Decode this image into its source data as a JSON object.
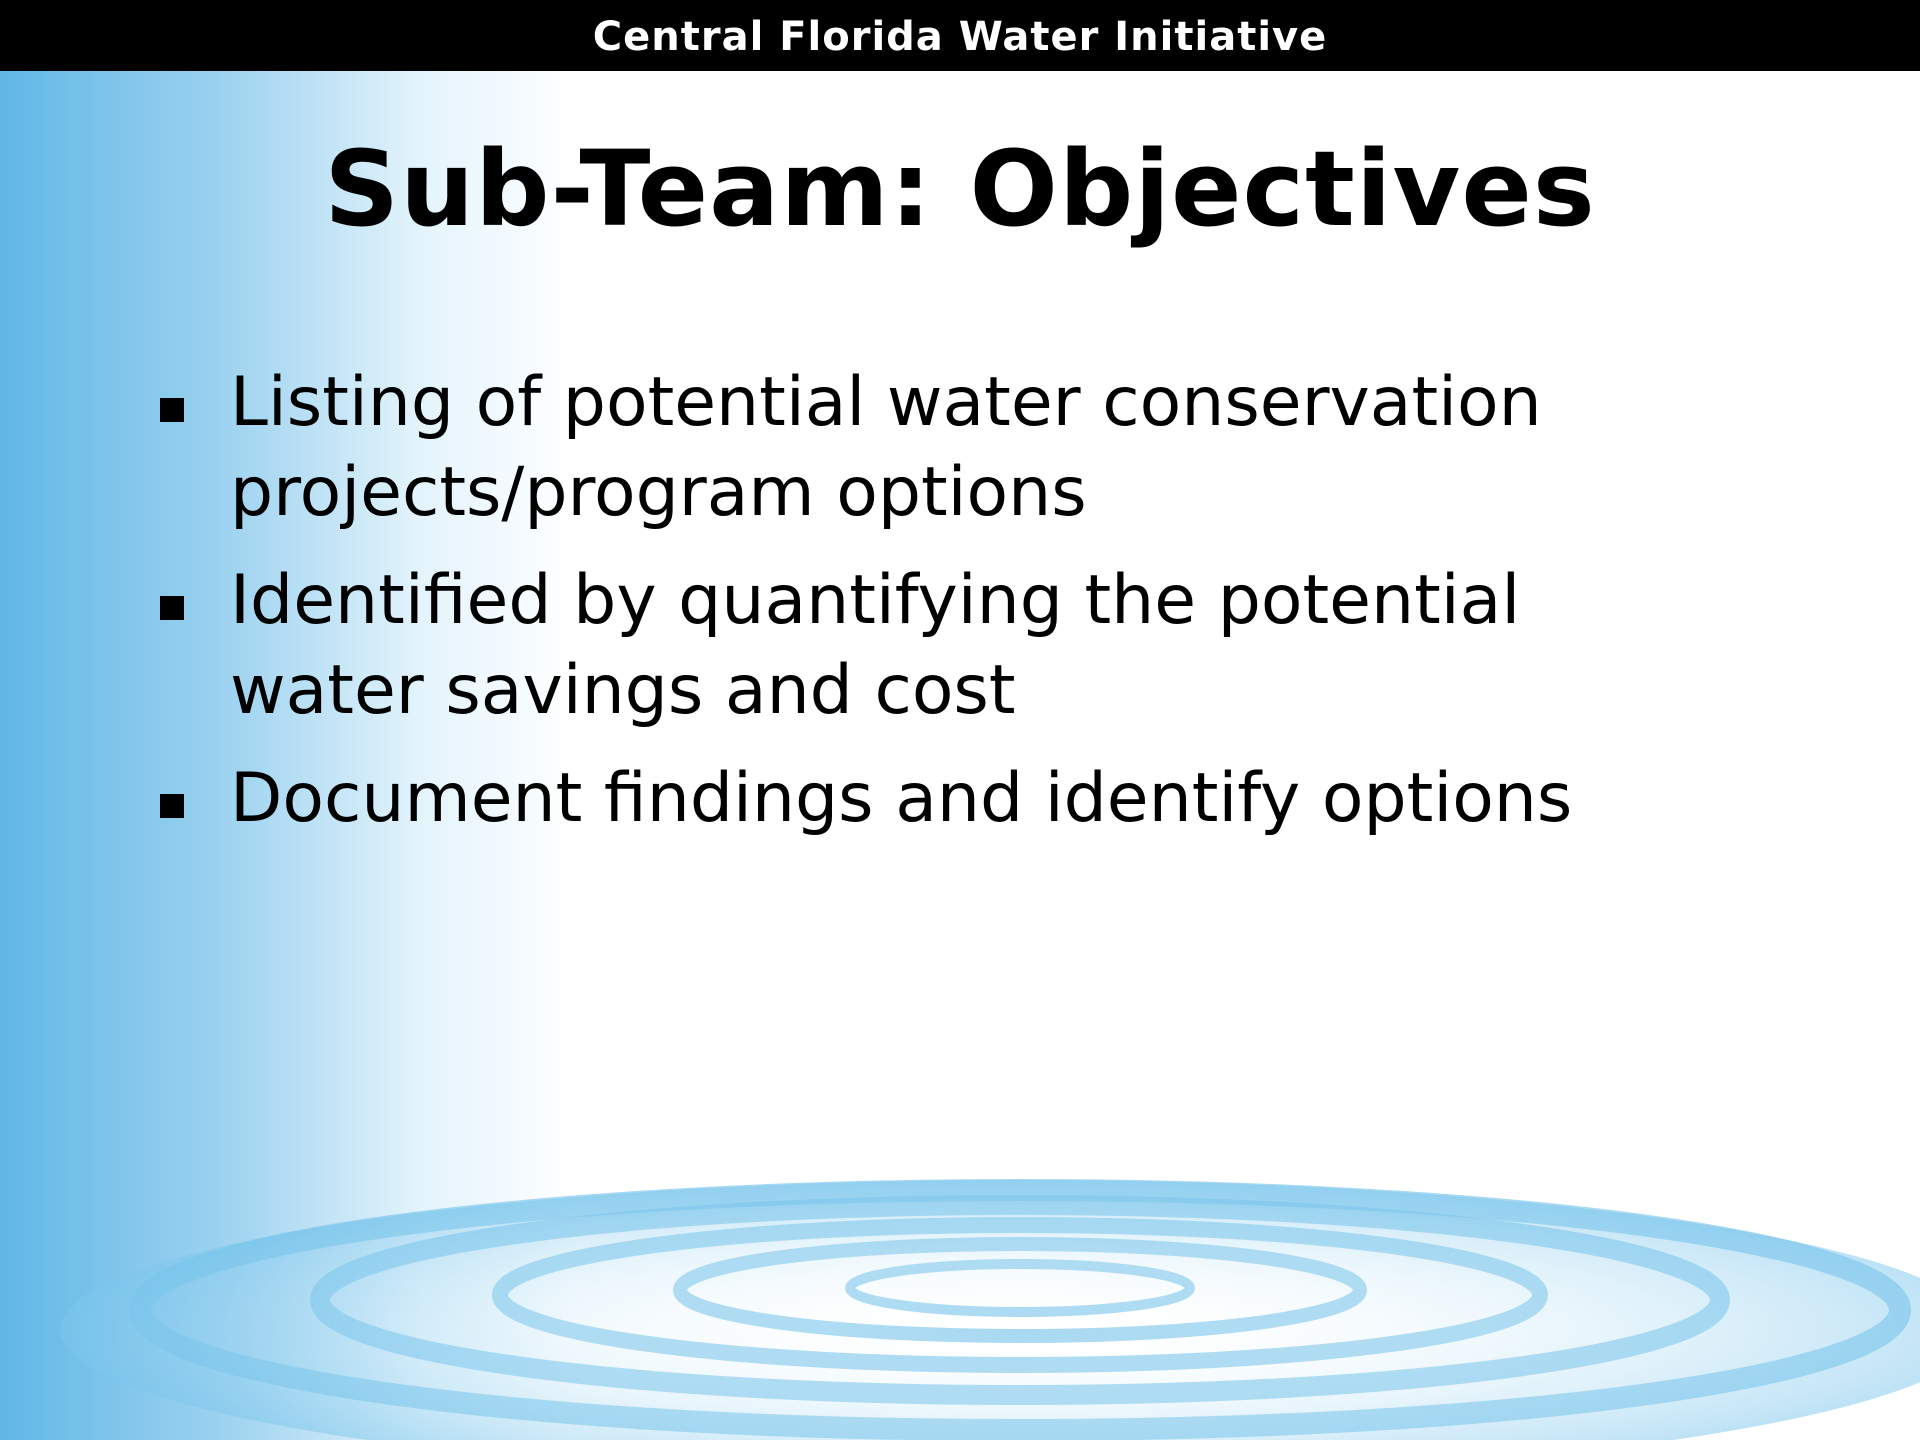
{
  "header": {
    "title": "Central Florida Water Initiative"
  },
  "slide": {
    "title": "Sub-Team: Objectives",
    "bullets": [
      "Listing of potential water conservation projects/program options",
      "Identified by quantifying the potential water savings and cost",
      "Document findings and identify options"
    ]
  }
}
